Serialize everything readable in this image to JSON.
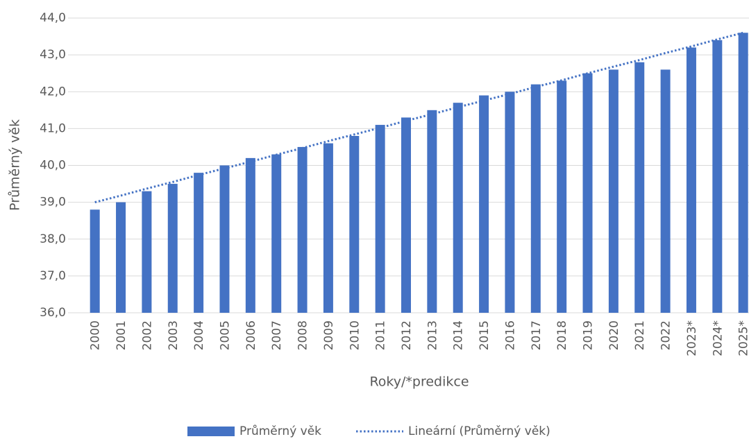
{
  "chart_data": {
    "type": "bar",
    "x_label": "Roky/*predikce",
    "y_label": "Průměrný věk",
    "categories": [
      "2000",
      "2001",
      "2002",
      "2003",
      "2004",
      "2005",
      "2006",
      "2007",
      "2008",
      "2009",
      "2010",
      "2011",
      "2012",
      "2013",
      "2014",
      "2015",
      "2016",
      "2017",
      "2018",
      "2019",
      "2020",
      "2021",
      "2022",
      "2023*",
      "2024*",
      "2025*"
    ],
    "series": [
      {
        "name": "Průměrný věk",
        "type": "bar",
        "color": "#4472c4",
        "values": [
          38.8,
          39.0,
          39.3,
          39.5,
          39.8,
          40.0,
          40.2,
          40.3,
          40.5,
          40.6,
          40.8,
          41.1,
          41.3,
          41.5,
          41.7,
          41.9,
          42.0,
          42.2,
          42.3,
          42.5,
          42.6,
          42.8,
          42.6,
          43.2,
          43.4,
          43.6
        ]
      },
      {
        "name": "Lineární (Průměrný věk)",
        "type": "line",
        "line_style": "dotted",
        "color": "#4472c4",
        "values": [
          39.0,
          39.18,
          39.37,
          39.55,
          39.74,
          39.92,
          40.1,
          40.29,
          40.47,
          40.66,
          40.84,
          41.02,
          41.21,
          41.39,
          41.58,
          41.76,
          41.94,
          42.13,
          42.31,
          42.5,
          42.68,
          42.86,
          43.05,
          43.23,
          43.42,
          43.6
        ]
      }
    ],
    "ylim": [
      36,
      44
    ],
    "yticks": [
      {
        "value": 36,
        "label": "36,0"
      },
      {
        "value": 37,
        "label": "37,0"
      },
      {
        "value": 38,
        "label": "38,0"
      },
      {
        "value": 39,
        "label": "39,0"
      },
      {
        "value": 40,
        "label": "40,0"
      },
      {
        "value": 41,
        "label": "41,0"
      },
      {
        "value": 42,
        "label": "42,0"
      },
      {
        "value": 43,
        "label": "43,0"
      },
      {
        "value": 44,
        "label": "44,0"
      }
    ],
    "grid": true,
    "legend": "bottom"
  }
}
